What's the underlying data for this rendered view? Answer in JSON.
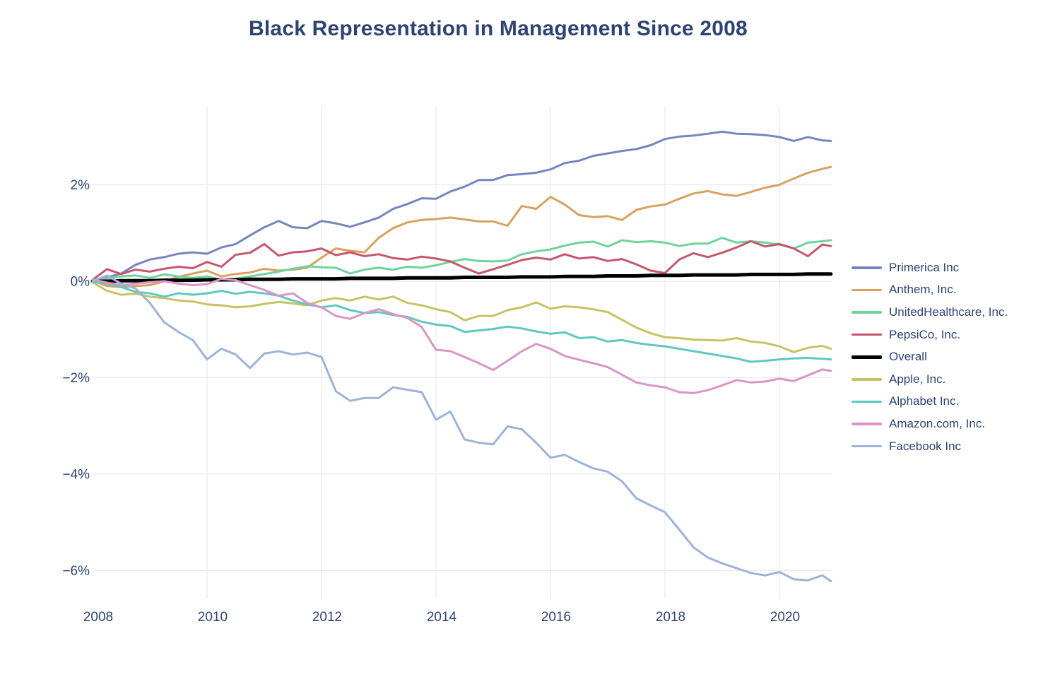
{
  "title": "Black Representation in Management Since 2008",
  "colors": {
    "text": "#2e4374",
    "grid": "#e8eaf1",
    "background": "#ffffff"
  },
  "chart_data": {
    "type": "line",
    "title": "Black Representation in Management Since 2008",
    "xlabel": "",
    "ylabel": "",
    "grid": true,
    "legend_position": "right",
    "xlim": [
      2008,
      2021.0
    ],
    "ylim": [
      -6.9,
      3.4
    ],
    "x_ticks": [
      {
        "value": 2008,
        "label": "2008"
      },
      {
        "value": 2010,
        "label": "2010"
      },
      {
        "value": 2012,
        "label": "2012"
      },
      {
        "value": 2014,
        "label": "2014"
      },
      {
        "value": 2016,
        "label": "2016"
      },
      {
        "value": 2018,
        "label": "2018"
      },
      {
        "value": 2020,
        "label": "2020"
      }
    ],
    "y_ticks": [
      {
        "value": 2,
        "label": "2%"
      },
      {
        "value": 0,
        "label": "0%"
      },
      {
        "value": -2,
        "label": "−2%"
      },
      {
        "value": -4,
        "label": "−4%"
      },
      {
        "value": -6,
        "label": "−6%"
      }
    ],
    "x": [
      2008,
      2008.25,
      2008.5,
      2008.75,
      2009,
      2009.25,
      2009.5,
      2009.75,
      2010,
      2010.25,
      2010.5,
      2010.75,
      2011,
      2011.25,
      2011.5,
      2011.75,
      2012,
      2012.25,
      2012.5,
      2012.75,
      2013,
      2013.25,
      2013.5,
      2013.75,
      2014,
      2014.25,
      2014.5,
      2014.75,
      2015,
      2015.25,
      2015.5,
      2015.75,
      2016,
      2016.25,
      2016.5,
      2016.75,
      2017,
      2017.25,
      2017.5,
      2017.75,
      2018,
      2018.25,
      2018.5,
      2018.75,
      2019,
      2019.25,
      2019.5,
      2019.75,
      2020,
      2020.25,
      2020.5,
      2020.75,
      2020.9
    ],
    "series": [
      {
        "name": "Primerica Inc",
        "color": "#7585bd",
        "width": 3,
        "values": [
          0,
          0.08,
          0.16,
          0.34,
          0.45,
          0.5,
          0.57,
          0.6,
          0.57,
          0.7,
          0.77,
          0.95,
          1.12,
          1.25,
          1.12,
          1.1,
          1.25,
          1.2,
          1.13,
          1.22,
          1.32,
          1.5,
          1.6,
          1.72,
          1.71,
          1.86,
          1.96,
          2.1,
          2.1,
          2.2,
          2.22,
          2.25,
          2.32,
          2.45,
          2.5,
          2.6,
          2.65,
          2.7,
          2.74,
          2.82,
          2.95,
          3.0,
          3.02,
          3.06,
          3.1,
          3.06,
          3.05,
          3.03,
          2.99,
          2.91,
          2.99,
          2.92,
          2.91
        ]
      },
      {
        "name": "Anthem, Inc.",
        "color": "#d9a15f",
        "width": 3,
        "values": [
          0.02,
          -0.1,
          -0.12,
          -0.1,
          -0.08,
          0,
          0.09,
          0.16,
          0.22,
          0.1,
          0.15,
          0.18,
          0.26,
          0.22,
          0.24,
          0.28,
          0.49,
          0.68,
          0.63,
          0.6,
          0.9,
          1.1,
          1.22,
          1.27,
          1.29,
          1.32,
          1.28,
          1.24,
          1.24,
          1.15,
          1.56,
          1.5,
          1.75,
          1.59,
          1.37,
          1.33,
          1.35,
          1.27,
          1.48,
          1.55,
          1.59,
          1.71,
          1.82,
          1.87,
          1.8,
          1.77,
          1.85,
          1.94,
          2.0,
          2.13,
          2.25,
          2.33,
          2.37
        ]
      },
      {
        "name": "UnitedHealthcare, Inc.",
        "color": "#6fd39c",
        "width": 3,
        "values": [
          0,
          0.06,
          0.1,
          0.12,
          0.07,
          0.14,
          0.1,
          0.07,
          0.1,
          0.03,
          0.05,
          0.1,
          0.15,
          0.2,
          0.26,
          0.31,
          0.29,
          0.28,
          0.16,
          0.24,
          0.28,
          0.24,
          0.3,
          0.28,
          0.33,
          0.4,
          0.46,
          0.42,
          0.41,
          0.43,
          0.56,
          0.62,
          0.66,
          0.74,
          0.8,
          0.82,
          0.72,
          0.85,
          0.81,
          0.83,
          0.8,
          0.73,
          0.78,
          0.78,
          0.9,
          0.8,
          0.83,
          0.8,
          0.76,
          0.68,
          0.8,
          0.83,
          0.85
        ]
      },
      {
        "name": "PepsiCo, Inc.",
        "color": "#c6566c",
        "width": 3,
        "values": [
          0.03,
          0.25,
          0.15,
          0.24,
          0.2,
          0.26,
          0.3,
          0.27,
          0.4,
          0.3,
          0.55,
          0.59,
          0.77,
          0.53,
          0.6,
          0.62,
          0.68,
          0.54,
          0.6,
          0.52,
          0.56,
          0.48,
          0.45,
          0.51,
          0.47,
          0.41,
          0.28,
          0.16,
          0.25,
          0.34,
          0.44,
          0.49,
          0.45,
          0.56,
          0.47,
          0.5,
          0.42,
          0.46,
          0.35,
          0.22,
          0.17,
          0.45,
          0.58,
          0.5,
          0.59,
          0.7,
          0.83,
          0.72,
          0.77,
          0.68,
          0.52,
          0.76,
          0.73
        ]
      },
      {
        "name": "Overall",
        "color": "#000000",
        "width": 5,
        "values": [
          0,
          0,
          0.01,
          0.01,
          0.01,
          0.02,
          0.02,
          0.02,
          0.03,
          0.03,
          0.03,
          0.04,
          0.04,
          0.04,
          0.05,
          0.05,
          0.05,
          0.05,
          0.06,
          0.06,
          0.06,
          0.06,
          0.07,
          0.07,
          0.07,
          0.07,
          0.08,
          0.08,
          0.08,
          0.08,
          0.09,
          0.09,
          0.09,
          0.1,
          0.1,
          0.1,
          0.11,
          0.11,
          0.11,
          0.12,
          0.12,
          0.12,
          0.13,
          0.13,
          0.13,
          0.13,
          0.14,
          0.14,
          0.14,
          0.14,
          0.15,
          0.15,
          0.15
        ]
      },
      {
        "name": "Apple, Inc.",
        "color": "#c7c262",
        "width": 3,
        "values": [
          -0.02,
          -0.2,
          -0.28,
          -0.26,
          -0.32,
          -0.35,
          -0.4,
          -0.42,
          -0.48,
          -0.5,
          -0.54,
          -0.52,
          -0.47,
          -0.43,
          -0.46,
          -0.5,
          -0.4,
          -0.35,
          -0.4,
          -0.32,
          -0.38,
          -0.32,
          -0.45,
          -0.5,
          -0.58,
          -0.64,
          -0.81,
          -0.72,
          -0.72,
          -0.6,
          -0.54,
          -0.44,
          -0.57,
          -0.52,
          -0.54,
          -0.58,
          -0.64,
          -0.8,
          -0.96,
          -1.08,
          -1.16,
          -1.18,
          -1.21,
          -1.22,
          -1.23,
          -1.18,
          -1.25,
          -1.28,
          -1.35,
          -1.47,
          -1.38,
          -1.34,
          -1.4
        ]
      },
      {
        "name": "Alphabet Inc.",
        "color": "#5ec8c1",
        "width": 3,
        "values": [
          -0.01,
          -0.05,
          -0.12,
          -0.22,
          -0.25,
          -0.32,
          -0.25,
          -0.28,
          -0.25,
          -0.2,
          -0.26,
          -0.22,
          -0.25,
          -0.3,
          -0.4,
          -0.48,
          -0.54,
          -0.5,
          -0.6,
          -0.66,
          -0.64,
          -0.7,
          -0.74,
          -0.84,
          -0.9,
          -0.93,
          -1.05,
          -1.02,
          -0.99,
          -0.94,
          -0.98,
          -1.04,
          -1.09,
          -1.06,
          -1.18,
          -1.16,
          -1.25,
          -1.22,
          -1.28,
          -1.32,
          -1.35,
          -1.4,
          -1.45,
          -1.5,
          -1.55,
          -1.6,
          -1.67,
          -1.65,
          -1.62,
          -1.6,
          -1.59,
          -1.61,
          -1.62
        ]
      },
      {
        "name": "Amazon.com, Inc.",
        "color": "#da95c6",
        "width": 3,
        "values": [
          0.04,
          -0.03,
          -0.08,
          -0.05,
          -0.02,
          0,
          -0.05,
          -0.08,
          -0.06,
          0.05,
          0.02,
          -0.08,
          -0.18,
          -0.3,
          -0.25,
          -0.45,
          -0.54,
          -0.72,
          -0.78,
          -0.66,
          -0.58,
          -0.68,
          -0.76,
          -0.95,
          -1.42,
          -1.45,
          -1.57,
          -1.7,
          -1.84,
          -1.65,
          -1.45,
          -1.3,
          -1.4,
          -1.55,
          -1.63,
          -1.7,
          -1.78,
          -1.94,
          -2.1,
          -2.16,
          -2.2,
          -2.3,
          -2.32,
          -2.26,
          -2.16,
          -2.05,
          -2.1,
          -2.08,
          -2.02,
          -2.07,
          -1.95,
          -1.83,
          -1.86
        ]
      },
      {
        "name": "Facebook Inc",
        "color": "#9fb2d8",
        "width": 3,
        "values": [
          0,
          0.12,
          -0.05,
          -0.15,
          -0.45,
          -0.85,
          -1.05,
          -1.22,
          -1.62,
          -1.4,
          -1.52,
          -1.8,
          -1.5,
          -1.45,
          -1.52,
          -1.48,
          -1.57,
          -2.28,
          -2.48,
          -2.42,
          -2.42,
          -2.2,
          -2.25,
          -2.3,
          -2.87,
          -2.7,
          -3.28,
          -3.35,
          -3.38,
          -3.01,
          -3.07,
          -3.35,
          -3.66,
          -3.6,
          -3.75,
          -3.88,
          -3.95,
          -4.15,
          -4.5,
          -4.65,
          -4.79,
          -5.15,
          -5.52,
          -5.73,
          -5.85,
          -5.95,
          -6.05,
          -6.1,
          -6.03,
          -6.18,
          -6.2,
          -6.1,
          -6.22
        ]
      }
    ]
  }
}
